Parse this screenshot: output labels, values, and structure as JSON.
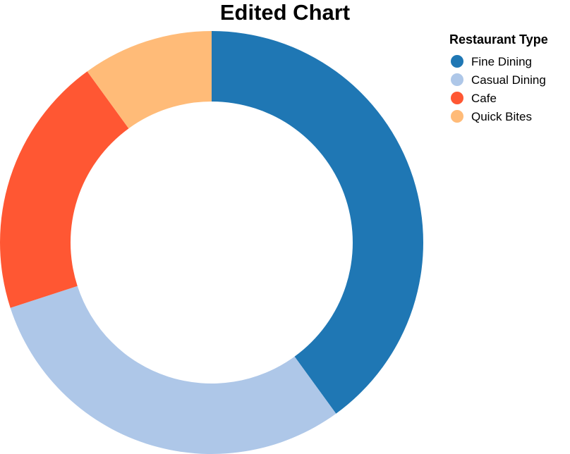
{
  "chart_data": {
    "type": "pie",
    "title": "Edited Chart",
    "legend_title": "Restaurant Type",
    "legend_position": "top-right",
    "categories": [
      "Fine Dining",
      "Casual Dining",
      "Cafe",
      "Quick Bites"
    ],
    "values": [
      40,
      30,
      20,
      10
    ],
    "colors": [
      "#1f77b4",
      "#aec7e8",
      "#ff5733",
      "#ffbb78"
    ],
    "donut": true
  }
}
